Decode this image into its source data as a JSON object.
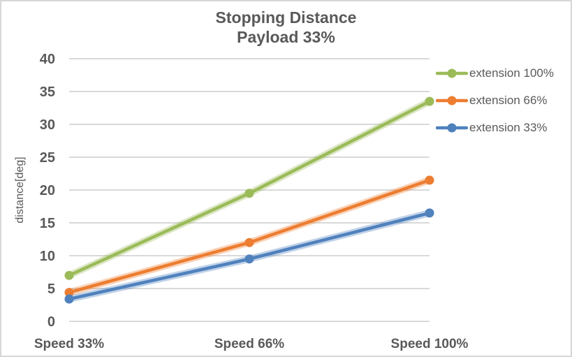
{
  "chart_data": {
    "type": "line",
    "title": "Stopping Distance",
    "subtitle": "Payload 33%",
    "ylabel": "distance[deg]",
    "categories": [
      "Speed 33%",
      "Speed 66%",
      "Speed 100%"
    ],
    "series": [
      {
        "name": "extension 100%",
        "color": "#9BBB59",
        "values": [
          7.0,
          19.5,
          33.5
        ]
      },
      {
        "name": "extension 66%",
        "color": "#ED7D31",
        "values": [
          4.4,
          12.0,
          21.5
        ]
      },
      {
        "name": "extension 33%",
        "color": "#4F81BD",
        "values": [
          3.4,
          9.5,
          16.5
        ]
      }
    ],
    "ylim": [
      0,
      40
    ],
    "yticks": [
      0,
      5,
      10,
      15,
      20,
      25,
      30,
      35,
      40
    ],
    "grid": true,
    "legend_position": "right",
    "marker": "circle",
    "text_color": "#595959",
    "grid_color": "#D9D9D9",
    "background": "#FFFFFF"
  }
}
